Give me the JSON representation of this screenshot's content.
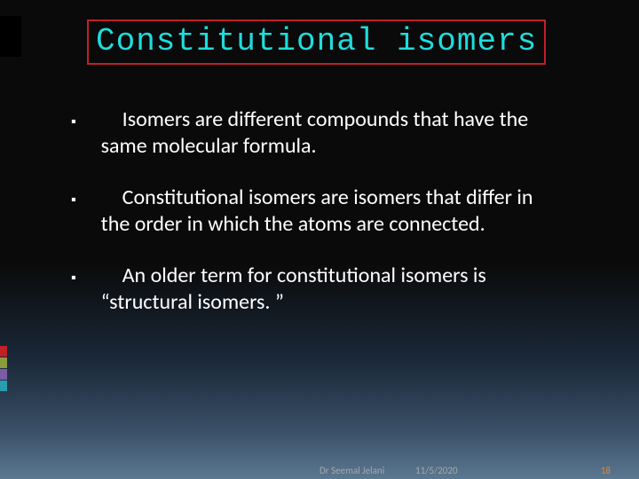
{
  "title": {
    "text": "Constitutional isomers",
    "color": "#20dcdc",
    "box_border_color": "#c02028",
    "font_family": "Consolas",
    "font_size": 36
  },
  "bullets": {
    "marker": "▪",
    "text_color": "#ffffff",
    "marker_color": "#ffffff",
    "font_size": 24,
    "items": [
      {
        "text": "Isomers are different compounds that have the same molecular formula."
      },
      {
        "text": "Constitutional isomers are isomers that differ in the order in which the atoms are connected."
      },
      {
        "text": "An older term for constitutional isomers is “structural isomers. ”"
      }
    ]
  },
  "side_accent_colors": [
    "#c02028",
    "#8a9c3c",
    "#7a5ca8",
    "#2a9cb0"
  ],
  "footer": {
    "author": "Dr Seemal Jelani",
    "date": "11/5/2020",
    "page": "18",
    "color": "#a8a8a8",
    "page_color": "#d08a4a"
  },
  "background": {
    "gradient_top": "#0a0a0a",
    "gradient_bottom": "#5a7890"
  }
}
